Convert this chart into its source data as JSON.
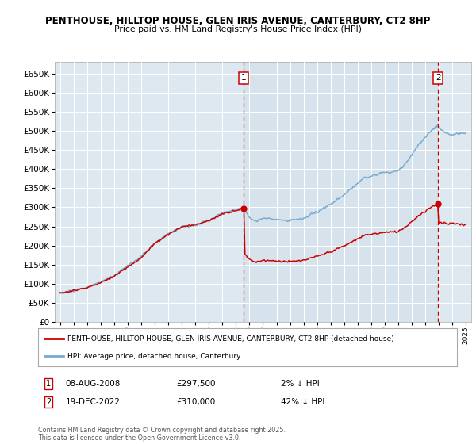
{
  "title1": "PENTHOUSE, HILLTOP HOUSE, GLEN IRIS AVENUE, CANTERBURY, CT2 8HP",
  "title2": "Price paid vs. HM Land Registry's House Price Index (HPI)",
  "legend_label1": "PENTHOUSE, HILLTOP HOUSE, GLEN IRIS AVENUE, CANTERBURY, CT2 8HP (detached house)",
  "legend_label2": "HPI: Average price, detached house, Canterbury",
  "ann1_date": "08-AUG-2008",
  "ann1_price": "£297,500",
  "ann1_pct": "2% ↓ HPI",
  "ann2_date": "19-DEC-2022",
  "ann2_price": "£310,000",
  "ann2_pct": "42% ↓ HPI",
  "footnote": "Contains HM Land Registry data © Crown copyright and database right 2025.\nThis data is licensed under the Open Government Licence v3.0.",
  "marker1_year": 2008.583,
  "marker2_year": 2022.958,
  "sale1_value": 297500,
  "sale2_value": 310000,
  "color_red": "#cc0000",
  "color_blue": "#7aabcf",
  "color_dashed": "#cc0000",
  "bg_color": "#dde8f0",
  "ylim": [
    0,
    680000
  ],
  "xlim_start": 1994.6,
  "xlim_end": 2025.4
}
